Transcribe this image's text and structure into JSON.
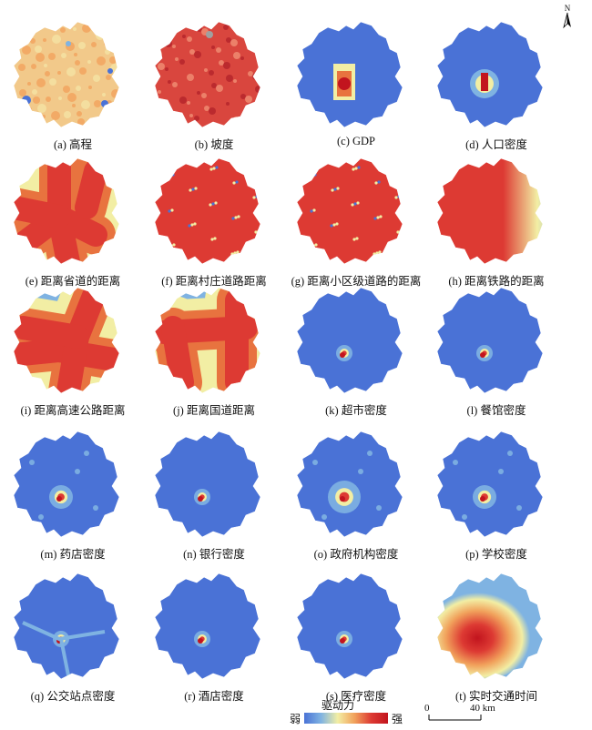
{
  "panels": [
    {
      "caption": "(a) 高程",
      "style": "elevation"
    },
    {
      "caption": "(b) 坡度",
      "style": "slope"
    },
    {
      "caption": "(c) GDP",
      "style": "gdp"
    },
    {
      "caption": "(d) 人口密度",
      "style": "pop"
    },
    {
      "caption": "(e) 距离省道的距离",
      "style": "distE"
    },
    {
      "caption": "(f) 距离村庄道路距离",
      "style": "dense"
    },
    {
      "caption": "(g) 距离小区级道路的距离",
      "style": "dense"
    },
    {
      "caption": "(h) 距离铁路的距离",
      "style": "distH"
    },
    {
      "caption": "(i) 距离高速公路距离",
      "style": "distI"
    },
    {
      "caption": "(j) 距离国道距离",
      "style": "distJ"
    },
    {
      "caption": "(k) 超市密度",
      "style": "poi_small"
    },
    {
      "caption": "(l) 餐馆密度",
      "style": "poi_small"
    },
    {
      "caption": "(m) 药店密度",
      "style": "poi_mid"
    },
    {
      "caption": "(n) 银行密度",
      "style": "poi_small"
    },
    {
      "caption": "(o) 政府机构密度",
      "style": "poi_wide"
    },
    {
      "caption": "(p) 学校密度",
      "style": "poi_mid"
    },
    {
      "caption": "(q) 公交站点密度",
      "style": "poi_bus"
    },
    {
      "caption": "(r) 酒店密度",
      "style": "poi_small"
    },
    {
      "caption": "(s) 医疗密度",
      "style": "poi_small"
    },
    {
      "caption": "(t) 实时交通时间",
      "style": "traffic"
    }
  ],
  "legend": {
    "title": "驱动力",
    "low": "弱",
    "high": "强",
    "colors": [
      "#4a72d6",
      "#7fb3e2",
      "#f2eea4",
      "#f1a25c",
      "#dd3a33",
      "#c2141e"
    ]
  },
  "scale": {
    "zero": "0",
    "end": "40 km"
  },
  "north": "N"
}
